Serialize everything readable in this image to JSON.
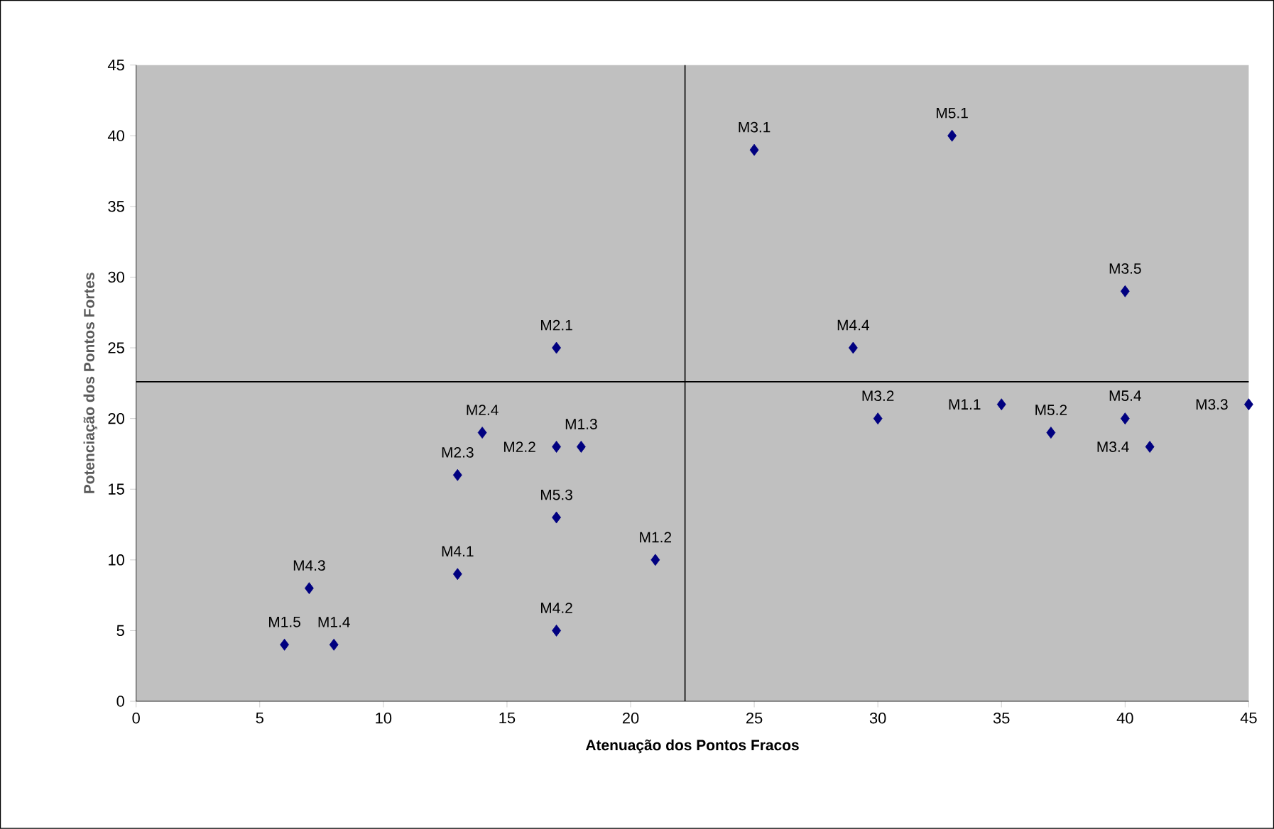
{
  "chart_data": {
    "type": "scatter",
    "xlabel": "Atenuação dos Pontos Fracos",
    "ylabel": "Potenciação dos Pontos Fortes",
    "series": [
      {
        "color": "#000080",
        "x": [
          35,
          21,
          18,
          8,
          6,
          17,
          17,
          13,
          14,
          25,
          30,
          45,
          41,
          40,
          13,
          17,
          7,
          29,
          33,
          37,
          17,
          40
        ],
        "values": [
          21,
          10,
          18,
          4,
          4,
          25,
          18,
          16,
          19,
          39,
          20,
          21,
          18,
          29,
          9,
          5,
          8,
          25,
          40,
          19,
          13,
          20
        ]
      }
    ],
    "marker": "diamond",
    "xlim": [
      0,
      45
    ],
    "ylim": [
      0,
      45
    ],
    "xticks": [
      0,
      5,
      10,
      15,
      20,
      25,
      30,
      35,
      40,
      45
    ],
    "yticks": [
      0,
      5,
      10,
      15,
      20,
      25,
      30,
      35,
      40,
      45
    ],
    "grid": false,
    "ref_lines": [
      {
        "axis": "x",
        "value": 22.2,
        "color": "#000000"
      },
      {
        "axis": "y",
        "value": 22.6,
        "color": "#000000"
      }
    ],
    "annotations": [
      {
        "text": "M1.1",
        "x": 35,
        "y": 21
      },
      {
        "text": "M1.2",
        "x": 21,
        "y": 10
      },
      {
        "text": "M1.3",
        "x": 18,
        "y": 18
      },
      {
        "text": "M1.4",
        "x": 8,
        "y": 4
      },
      {
        "text": "M1.5",
        "x": 6,
        "y": 4
      },
      {
        "text": "M2.1",
        "x": 17,
        "y": 25
      },
      {
        "text": "M2.2",
        "x": 17,
        "y": 18
      },
      {
        "text": "M2.3",
        "x": 13,
        "y": 16
      },
      {
        "text": "M2.4",
        "x": 14,
        "y": 19
      },
      {
        "text": "M3.1",
        "x": 25,
        "y": 39
      },
      {
        "text": "M3.2",
        "x": 30,
        "y": 20
      },
      {
        "text": "M3.3",
        "x": 45,
        "y": 21
      },
      {
        "text": "M3.4",
        "x": 41,
        "y": 18
      },
      {
        "text": "M3.5",
        "x": 40,
        "y": 29
      },
      {
        "text": "M4.1",
        "x": 13,
        "y": 9
      },
      {
        "text": "M4.2",
        "x": 17,
        "y": 5
      },
      {
        "text": "M4.3",
        "x": 7,
        "y": 8
      },
      {
        "text": "M4.4",
        "x": 29,
        "y": 25
      },
      {
        "text": "M5.1",
        "x": 33,
        "y": 40
      },
      {
        "text": "M5.2",
        "x": 37,
        "y": 19
      },
      {
        "text": "M5.3",
        "x": 17,
        "y": 13
      },
      {
        "text": "M5.4",
        "x": 40,
        "y": 20
      }
    ]
  }
}
